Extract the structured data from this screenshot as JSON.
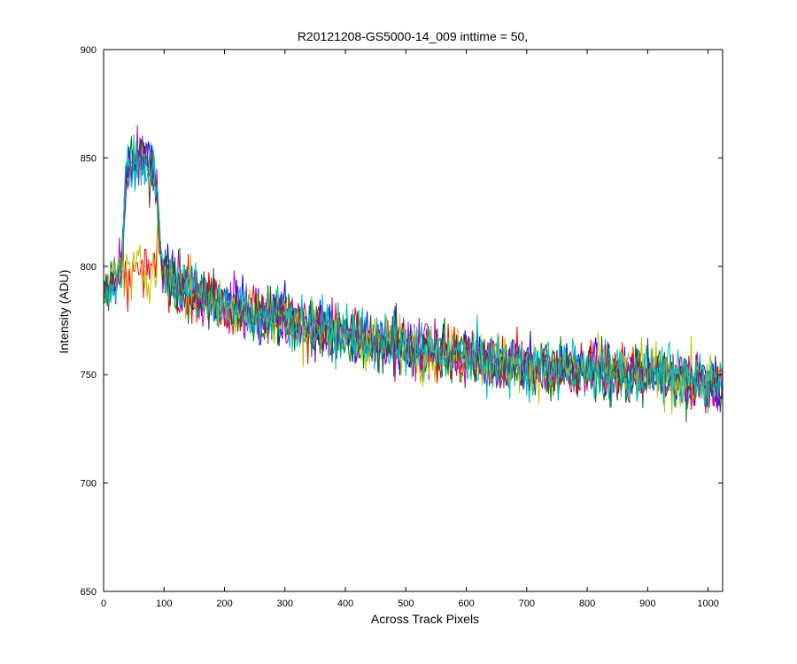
{
  "chart_data": {
    "type": "line",
    "title": "R20121208-GS5000-14_009 inttime = 50,",
    "xlabel": "Across Track Pixels",
    "ylabel": "Intensity (ADU)",
    "xlim": [
      0,
      1024
    ],
    "ylim": [
      650,
      900
    ],
    "xticks": [
      0,
      100,
      200,
      300,
      400,
      500,
      600,
      700,
      800,
      900,
      1000
    ],
    "yticks": [
      650,
      700,
      750,
      800,
      850,
      900
    ],
    "grid": false,
    "legend": "none",
    "series_colors": [
      "#0000ff",
      "#007f00",
      "#ff0000",
      "#00bfbf",
      "#bf00bf",
      "#bfbf00",
      "#3f3f3f",
      "#00bfbf"
    ],
    "trend": {
      "x": [
        0,
        10,
        20,
        30,
        35,
        40,
        50,
        60,
        70,
        80,
        88,
        95,
        100,
        150,
        200,
        300,
        400,
        500,
        600,
        700,
        800,
        900,
        1000,
        1024
      ],
      "y": [
        785,
        790,
        795,
        797,
        835,
        845,
        848,
        850,
        848,
        845,
        840,
        800,
        796,
        788,
        782,
        776,
        768,
        763,
        758,
        754,
        752,
        750,
        747,
        746
      ]
    },
    "noise_amplitude": 12
  }
}
